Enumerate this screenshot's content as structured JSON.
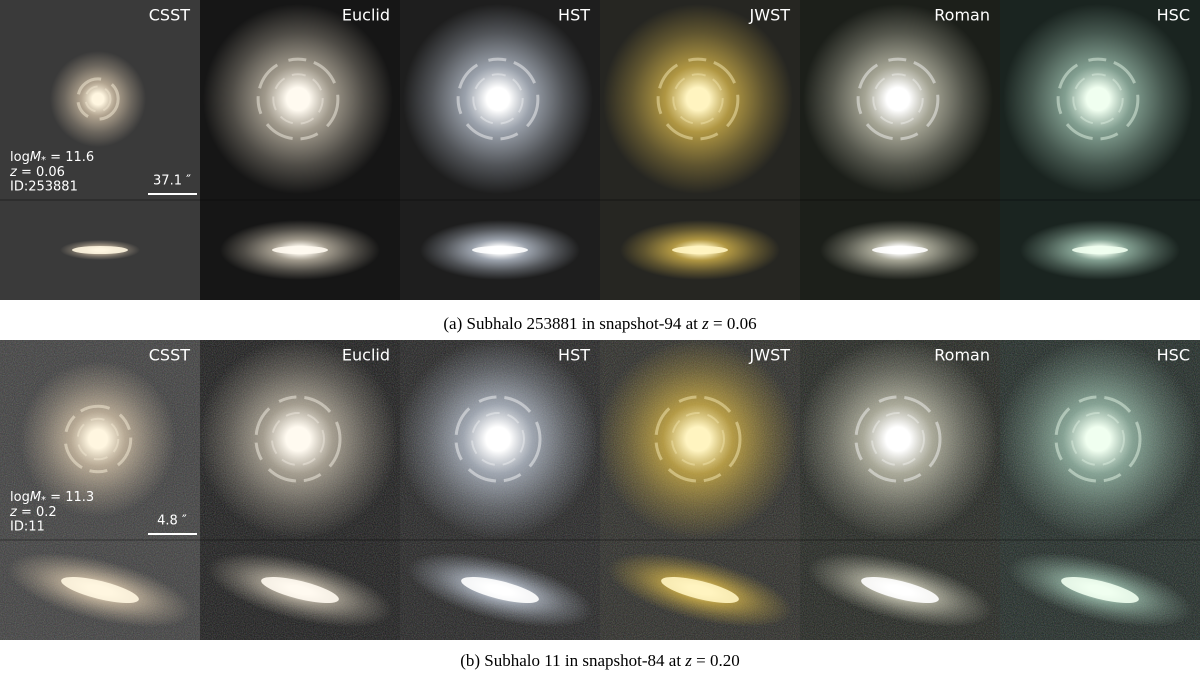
{
  "panels": [
    {
      "labels": [
        "CSST",
        "Euclid",
        "HST",
        "JWST",
        "Roman",
        "HSC"
      ],
      "info": {
        "mass_prefix": "log",
        "mass_symbol": "M",
        "mass_subscript": "*",
        "mass_value": " = 11.6",
        "redshift_symbol": "z",
        "redshift_value": " = 0.06",
        "id": "ID:253881"
      },
      "scale_bar": "37.1 ″",
      "caption": {
        "before": "(a) Subhalo 253881 in snapshot-94 at ",
        "symbol": "z",
        "after": " = 0.06"
      }
    },
    {
      "labels": [
        "CSST",
        "Euclid",
        "HST",
        "JWST",
        "Roman",
        "HSC"
      ],
      "info": {
        "mass_prefix": "log",
        "mass_symbol": "M",
        "mass_subscript": "*",
        "mass_value": " = 11.3",
        "redshift_symbol": "z",
        "redshift_value": " = 0.2",
        "id": "ID:11"
      },
      "scale_bar": "4.8 ″",
      "caption": {
        "before": "(b) Subhalo 11 in snapshot-84 at ",
        "symbol": "z",
        "after": " = 0.20"
      }
    }
  ]
}
